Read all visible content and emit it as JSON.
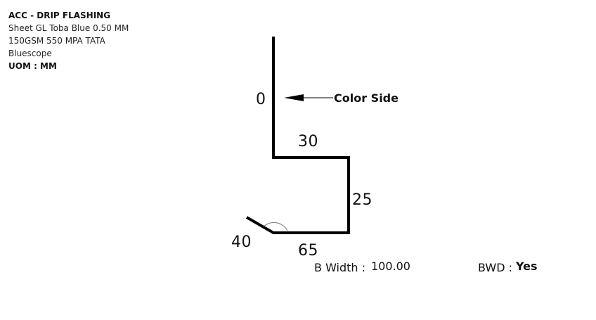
{
  "info": {
    "title": "ACC - DRIP FLASHING",
    "line1": "Sheet GL Toba Blue 0.50 MM",
    "line2": "150GSM 550 MPA TATA",
    "line3": "Bluescope",
    "uom": "UOM : MM"
  },
  "drawing": {
    "color_side_label": "Color Side",
    "dimensions": {
      "top": "0",
      "top_flat": "30",
      "riser": "25",
      "bottom": "65",
      "drip": "40"
    },
    "b_width_label": "B Width :",
    "b_width_value": "100.00",
    "bwd_label": "BWD :",
    "bwd_value": "Yes"
  }
}
